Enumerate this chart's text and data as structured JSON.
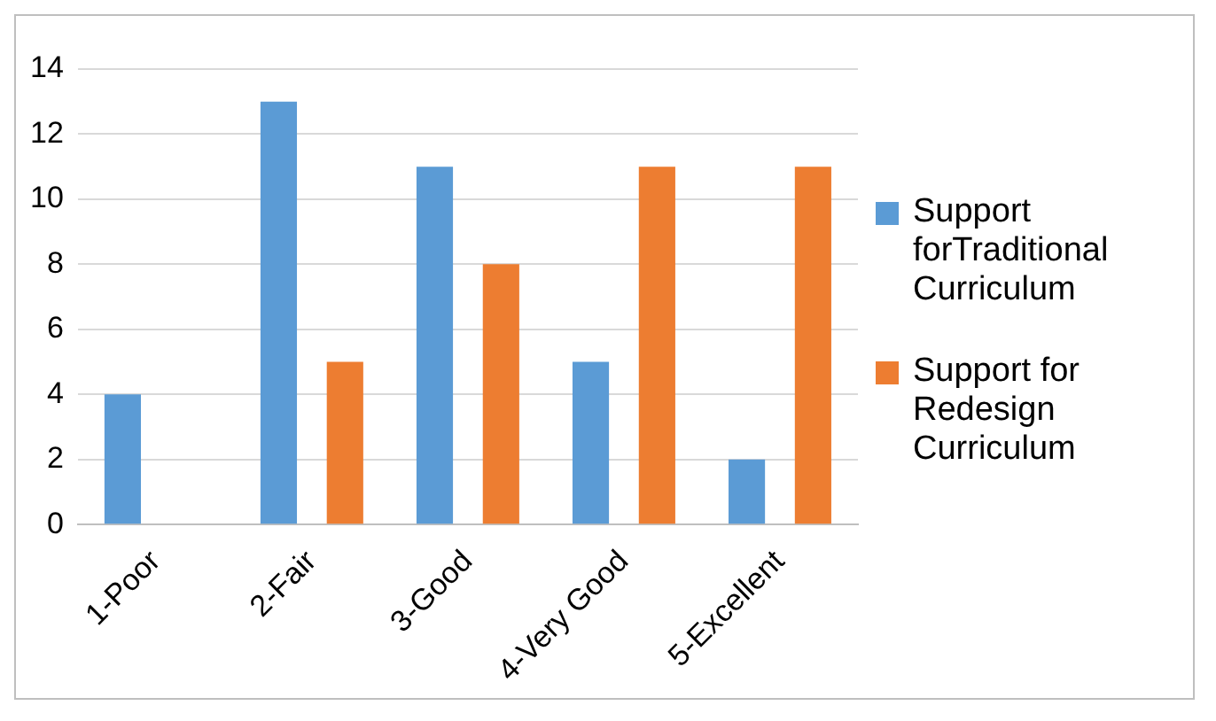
{
  "chart_data": {
    "type": "bar",
    "categories": [
      "1-Poor",
      "2-Fair",
      "3-Good",
      "4-Very Good",
      "5-Excellent"
    ],
    "series": [
      {
        "name": "Support forTraditional Curriculum",
        "color": "#5b9bd5",
        "values": [
          4,
          13,
          11,
          5,
          2
        ]
      },
      {
        "name": "Support for Redesign Curriculum",
        "color": "#ed7d31",
        "values": [
          0,
          5,
          8,
          11,
          11
        ]
      }
    ],
    "ylim": [
      0,
      14
    ],
    "yticks": [
      0,
      2,
      4,
      6,
      8,
      10,
      12,
      14
    ],
    "grid": "y",
    "legend": "right"
  }
}
